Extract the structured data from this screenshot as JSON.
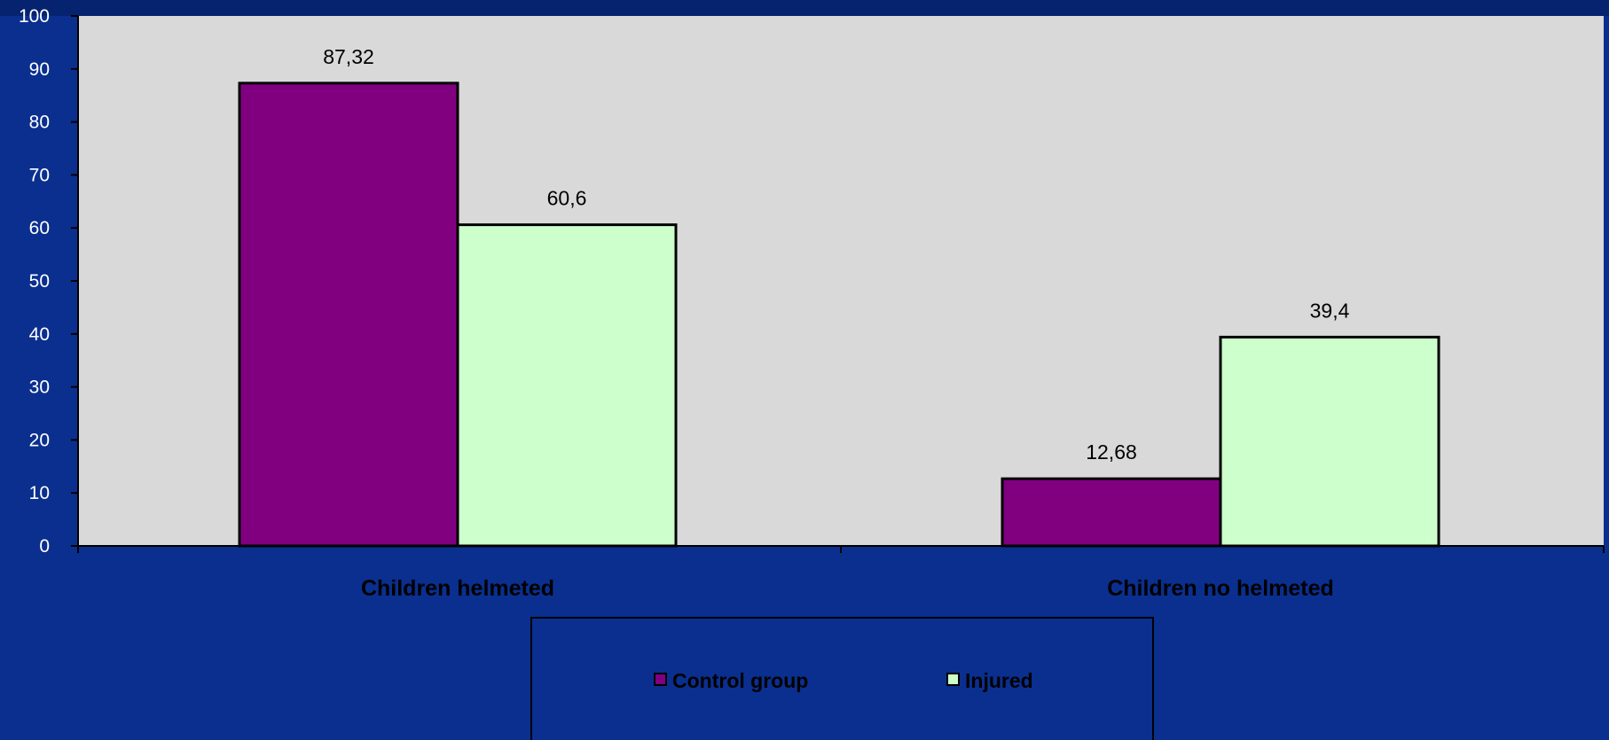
{
  "chart_data": {
    "type": "bar",
    "categories": [
      "Children helmeted",
      "Children no helmeted"
    ],
    "series": [
      {
        "name": "Control group",
        "values": [
          87.32,
          12.68
        ],
        "labels": [
          "87,32",
          "12,68"
        ]
      },
      {
        "name": "Injured",
        "values": [
          60.6,
          39.4
        ],
        "labels": [
          "60,6",
          "39,4"
        ]
      }
    ],
    "ylim": [
      0,
      100
    ],
    "yticks": [
      0,
      10,
      20,
      30,
      40,
      50,
      60,
      70,
      80,
      90,
      100
    ],
    "grid": false,
    "legend_position": "bottom",
    "title": "",
    "xlabel": "",
    "ylabel": ""
  },
  "colors": {
    "background": "#0a2f8f",
    "plot_area": "#d9d9d9",
    "control_group": "#800080",
    "injured": "#ccffcc",
    "axis": "#000000"
  }
}
